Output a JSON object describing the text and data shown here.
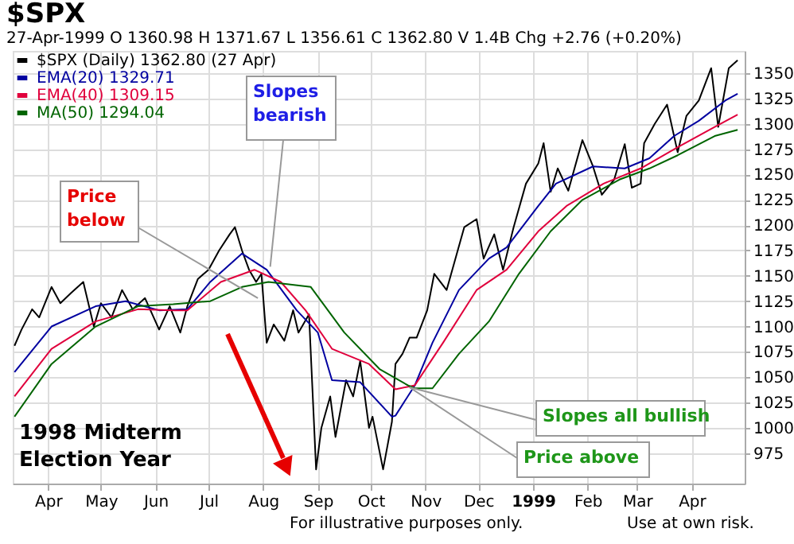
{
  "chart_data": {
    "type": "line",
    "title": "$SPX",
    "subtitle": "27-Apr-1999   O 1360.98  H 1371.67  L 1356.61  C 1362.80  V 1.4B  Chg +2.76 (+0.20%)",
    "series": [
      {
        "name": "$SPX (Daily) 1362.80 (27 Apr)",
        "color": "#000000",
        "x": [
          "1998-03-13",
          "1998-03-17",
          "1998-03-23",
          "1998-03-27",
          "1998-04-03",
          "1998-04-08",
          "1998-04-14",
          "1998-04-21",
          "1998-04-27",
          "1998-05-01",
          "1998-05-07",
          "1998-05-13",
          "1998-05-19",
          "1998-05-26",
          "1998-06-03",
          "1998-06-09",
          "1998-06-15",
          "1998-06-19",
          "1998-06-25",
          "1998-07-01",
          "1998-07-07",
          "1998-07-13",
          "1998-07-16",
          "1998-07-20",
          "1998-07-24",
          "1998-07-28",
          "1998-07-31",
          "1998-08-03",
          "1998-08-07",
          "1998-08-13",
          "1998-08-18",
          "1998-08-21",
          "1998-08-27",
          "1998-08-31",
          "1998-09-03",
          "1998-09-08",
          "1998-09-11",
          "1998-09-17",
          "1998-09-21",
          "1998-09-25",
          "1998-09-30",
          "1998-10-02",
          "1998-10-08",
          "1998-10-13",
          "1998-10-15",
          "1998-10-19",
          "1998-10-23",
          "1998-10-27",
          "1998-11-02",
          "1998-11-06",
          "1998-11-13",
          "1998-11-23",
          "1998-11-30",
          "1998-12-04",
          "1998-12-10",
          "1998-12-15",
          "1998-12-21",
          "1998-12-28",
          "1999-01-04",
          "1999-01-07",
          "1999-01-11",
          "1999-01-15",
          "1999-01-21",
          "1999-01-29",
          "1999-02-04",
          "1999-02-09",
          "1999-02-16",
          "1999-02-22",
          "1999-02-26",
          "1999-03-03",
          "1999-03-05",
          "1999-03-11",
          "1999-03-18",
          "1999-03-24",
          "1999-03-29",
          "1999-04-05",
          "1999-04-12",
          "1999-04-16",
          "1999-04-22",
          "1999-04-27"
        ],
        "values": [
          1081,
          1097,
          1117,
          1109,
          1139,
          1123,
          1133,
          1144,
          1100,
          1123,
          1109,
          1136,
          1117,
          1128,
          1097,
          1120,
          1094,
          1120,
          1147,
          1156,
          1175,
          1191,
          1198,
          1175,
          1156,
          1144,
          1152,
          1084,
          1102,
          1086,
          1116,
          1094,
          1112,
          959,
          1000,
          1031,
          991,
          1047,
          1031,
          1066,
          1000,
          1011,
          959,
          1006,
          1063,
          1073,
          1089,
          1089,
          1116,
          1152,
          1136,
          1198,
          1206,
          1167,
          1191,
          1156,
          1198,
          1241,
          1261,
          1281,
          1233,
          1256,
          1234,
          1284,
          1258,
          1230,
          1245,
          1280,
          1237,
          1241,
          1281,
          1300,
          1319,
          1272,
          1308,
          1323,
          1355,
          1297,
          1355,
          1362.8
        ]
      },
      {
        "name": "EMA(20) 1329.71",
        "color": "#0000a0",
        "x": [
          "1998-03-13",
          "1998-04-03",
          "1998-04-28",
          "1998-05-15",
          "1998-06-03",
          "1998-06-19",
          "1998-07-02",
          "1998-07-20",
          "1998-08-03",
          "1998-08-20",
          "1998-09-01",
          "1998-09-09",
          "1998-09-25",
          "1998-10-13",
          "1998-10-15",
          "1998-10-26",
          "1998-11-05",
          "1998-11-20",
          "1998-12-07",
          "1998-12-17",
          "1999-01-04",
          "1999-01-14",
          "1999-02-04",
          "1999-02-22",
          "1999-03-08",
          "1999-03-22",
          "1999-04-05",
          "1999-04-20",
          "1999-04-27"
        ],
        "values": [
          1055,
          1100,
          1120,
          1125,
          1116,
          1117,
          1144,
          1172,
          1156,
          1116,
          1094,
          1047,
          1045,
          1011,
          1012,
          1042,
          1084,
          1136,
          1167,
          1178,
          1219,
          1241,
          1258,
          1256,
          1266,
          1288,
          1303,
          1323,
          1329.71
        ]
      },
      {
        "name": "EMA(40) 1309.15",
        "color": "#e0003c",
        "x": [
          "1998-03-13",
          "1998-04-03",
          "1998-04-28",
          "1998-05-22",
          "1998-06-11",
          "1998-06-19",
          "1998-07-08",
          "1998-07-27",
          "1998-08-11",
          "1998-08-25",
          "1998-09-09",
          "1998-09-30",
          "1998-10-15",
          "1998-10-26",
          "1998-11-11",
          "1998-11-30",
          "1998-12-17",
          "1999-01-04",
          "1999-01-20",
          "1999-02-10",
          "1999-03-03",
          "1999-03-24",
          "1999-04-14",
          "1999-04-27"
        ],
        "values": [
          1031,
          1078,
          1105,
          1117,
          1116,
          1116,
          1144,
          1156,
          1144,
          1116,
          1078,
          1063,
          1038,
          1042,
          1084,
          1136,
          1156,
          1194,
          1219,
          1241,
          1256,
          1277,
          1297,
          1309.15
        ]
      },
      {
        "name": "MA(50) 1294.04",
        "color": "#006400",
        "x": [
          "1998-03-13",
          "1998-04-03",
          "1998-04-28",
          "1998-05-22",
          "1998-06-11",
          "1998-07-02",
          "1998-07-20",
          "1998-08-04",
          "1998-08-28",
          "1998-09-16",
          "1998-10-06",
          "1998-10-22",
          "1998-10-26",
          "1998-11-05",
          "1998-11-20",
          "1998-12-07",
          "1998-12-24",
          "1999-01-11",
          "1999-01-29",
          "1999-02-19",
          "1999-03-08",
          "1999-03-24",
          "1999-04-14",
          "1999-04-27"
        ],
        "values": [
          1011,
          1063,
          1100,
          1120,
          1122,
          1125,
          1139,
          1144,
          1139,
          1094,
          1058,
          1042,
          1039,
          1039,
          1073,
          1105,
          1152,
          1194,
          1225,
          1245,
          1256,
          1269,
          1288,
          1294.04
        ]
      }
    ],
    "xlim": [
      "1998-03-12",
      "1999-05-01"
    ],
    "xticks": [
      {
        "value": "1998-04-01",
        "label": "Apr"
      },
      {
        "value": "1998-05-01",
        "label": "May"
      },
      {
        "value": "1998-06-01",
        "label": "Jun"
      },
      {
        "value": "1998-07-01",
        "label": "Jul"
      },
      {
        "value": "1998-08-01",
        "label": "Aug"
      },
      {
        "value": "1998-09-01",
        "label": "Sep"
      },
      {
        "value": "1998-10-01",
        "label": "Oct"
      },
      {
        "value": "1998-11-01",
        "label": "Nov"
      },
      {
        "value": "1998-12-01",
        "label": "Dec"
      },
      {
        "value": "1999-01-01",
        "label": "1999"
      },
      {
        "value": "1999-02-01",
        "label": "Feb"
      },
      {
        "value": "1999-03-01",
        "label": "Mar"
      },
      {
        "value": "1999-04-01",
        "label": "Apr"
      }
    ],
    "ylim": [
      945,
      1372
    ],
    "yticks": [
      975,
      1000,
      1025,
      1050,
      1075,
      1100,
      1125,
      1150,
      1175,
      1200,
      1225,
      1250,
      1275,
      1300,
      1325,
      1350
    ],
    "grid": true,
    "legend": "top left",
    "marker": "none",
    "line_style": "solid",
    "annotations": [
      {
        "text": "Slopes\nbearish",
        "x": "1998-08-05",
        "y": 1159
      },
      {
        "text": "Price\nbelow",
        "x": "1998-07-29",
        "y": 1128
      },
      {
        "text": "Slopes all bullish",
        "x": "1998-10-23",
        "y": 1040
      },
      {
        "text": "Price above",
        "x": "1998-10-23",
        "y": 1040
      },
      "1998 Midterm\nElection Year",
      "For illustrative purposes only.",
      "Use at own risk."
    ]
  }
}
